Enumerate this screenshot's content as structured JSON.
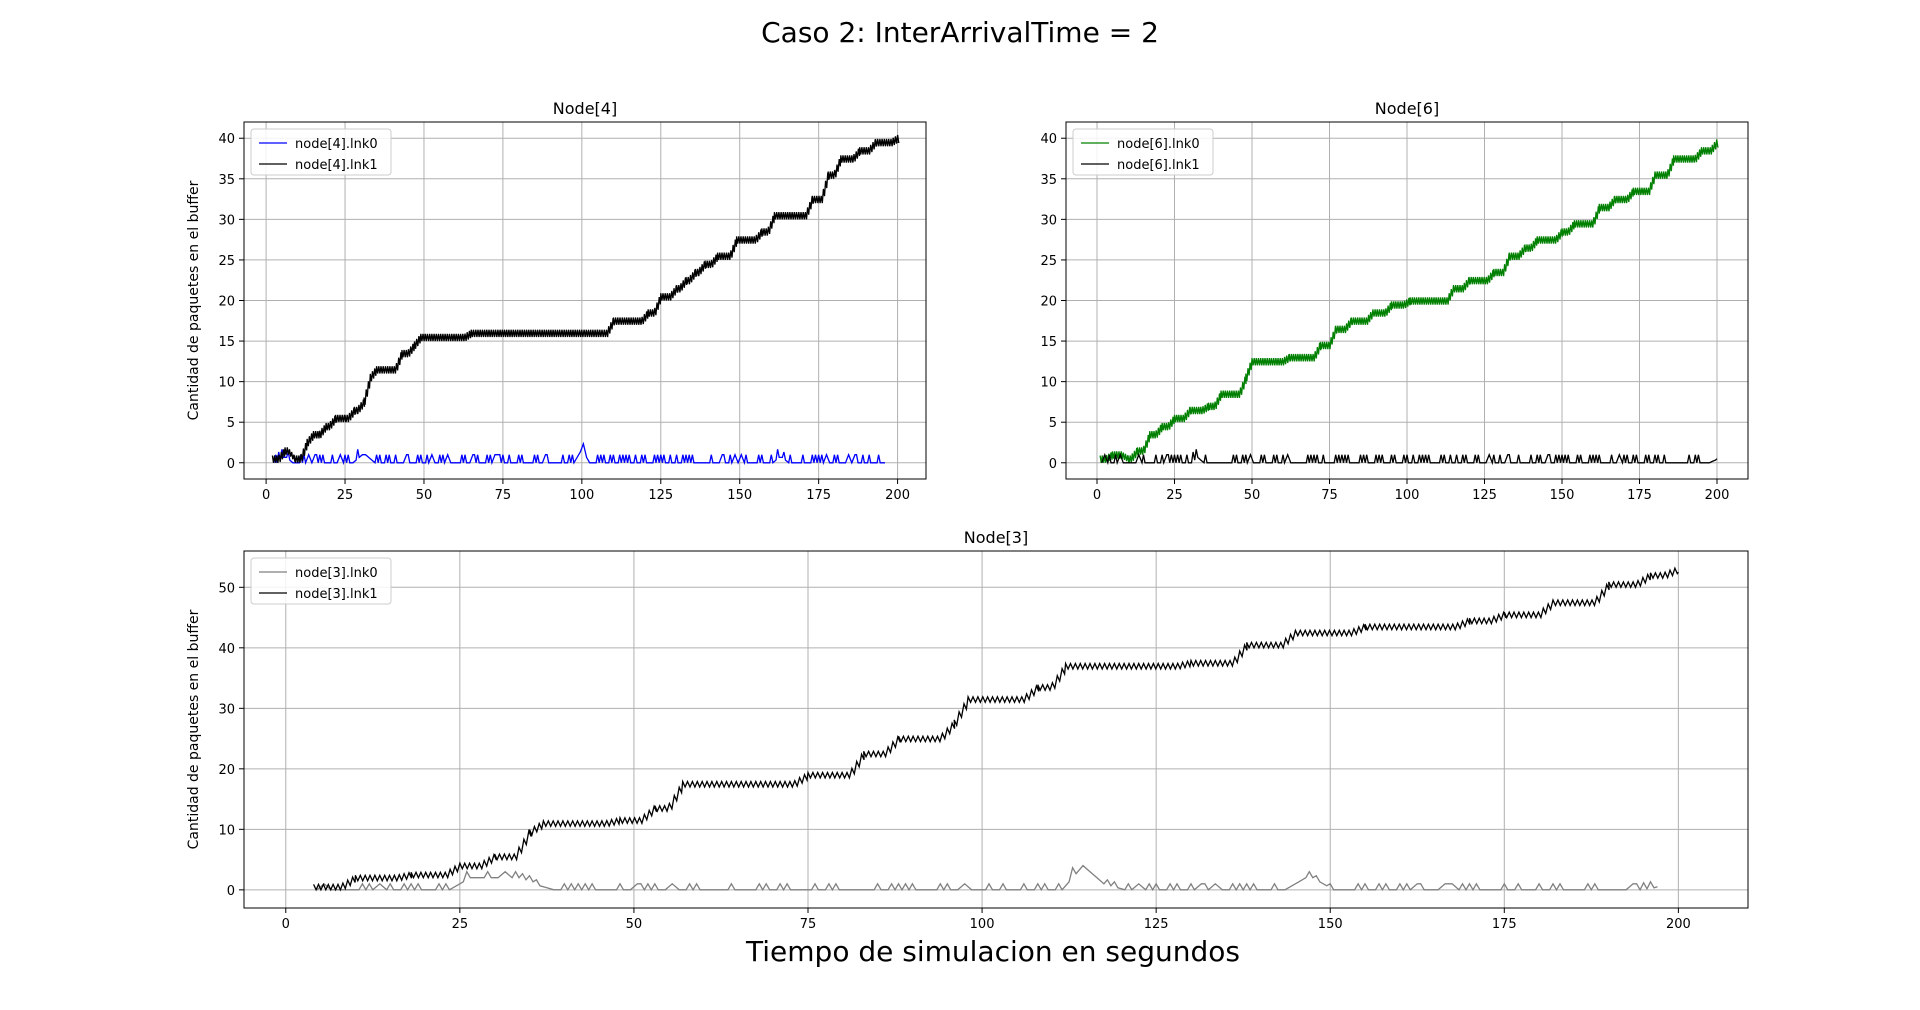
{
  "figure": {
    "suptitle": "Caso 2: InterArrivalTime = 2",
    "xlabel": "Tiempo de simulacion en segundos"
  },
  "colors": {
    "grid": "#b0b0b0",
    "legend_border": "#cccccc"
  },
  "chart_data": [
    {
      "type": "line",
      "title": "Node[4]",
      "xlabel": "",
      "ylabel": "Cantidad de paquetes en el buffer",
      "xlim": [
        -7,
        209
      ],
      "ylim": [
        -2,
        42
      ],
      "xticks": [
        0,
        25,
        50,
        75,
        100,
        125,
        150,
        175,
        200
      ],
      "yticks": [
        0,
        5,
        10,
        15,
        20,
        25,
        30,
        35,
        40
      ],
      "grid": true,
      "legend": "top-left",
      "series": [
        {
          "name": "node[4].lnk0",
          "color": "#0000ff",
          "noise": "sparse",
          "steps": [
            [
              2,
              0
            ],
            [
              6,
              1
            ],
            [
              8,
              0
            ],
            [
              30,
              1
            ],
            [
              34,
              0
            ],
            [
              100,
              2
            ],
            [
              102,
              0
            ],
            [
              163,
              1
            ],
            [
              165,
              0
            ],
            [
              196,
              0
            ]
          ]
        },
        {
          "name": "node[4].lnk1",
          "color": "#000000",
          "noise": "dense",
          "steps": [
            [
              2,
              0
            ],
            [
              6,
              1
            ],
            [
              9,
              0
            ],
            [
              13,
              2
            ],
            [
              15,
              3
            ],
            [
              17,
              3
            ],
            [
              19,
              4
            ],
            [
              22,
              5
            ],
            [
              25,
              5
            ],
            [
              28,
              6
            ],
            [
              31,
              7
            ],
            [
              33,
              10
            ],
            [
              35,
              11
            ],
            [
              43,
              13
            ],
            [
              47,
              14
            ],
            [
              49,
              15
            ],
            [
              65,
              15.5
            ],
            [
              105,
              15.5
            ],
            [
              110,
              17
            ],
            [
              121,
              18
            ],
            [
              125,
              20
            ],
            [
              130,
              21
            ],
            [
              133,
              22
            ],
            [
              136,
              23
            ],
            [
              139,
              24
            ],
            [
              143,
              25
            ],
            [
              149,
              27
            ],
            [
              157,
              28
            ],
            [
              161,
              30
            ],
            [
              173,
              32
            ],
            [
              178,
              35
            ],
            [
              182,
              37
            ],
            [
              188,
              38
            ],
            [
              193,
              39
            ],
            [
              200,
              39.5
            ]
          ]
        }
      ]
    },
    {
      "type": "line",
      "title": "Node[6]",
      "xlabel": "",
      "ylabel": "",
      "xlim": [
        -10,
        210
      ],
      "ylim": [
        -2,
        42
      ],
      "xticks": [
        0,
        25,
        50,
        75,
        100,
        125,
        150,
        175,
        200
      ],
      "yticks": [
        0,
        5,
        10,
        15,
        20,
        25,
        30,
        35,
        40
      ],
      "grid": true,
      "legend": "top-left",
      "series": [
        {
          "name": "node[6].lnk0",
          "color": "#008000",
          "noise": "dense",
          "steps": [
            [
              1,
              0
            ],
            [
              5,
              0.5
            ],
            [
              10,
              0
            ],
            [
              13,
              1
            ],
            [
              17,
              3
            ],
            [
              21,
              4
            ],
            [
              25,
              5
            ],
            [
              30,
              6
            ],
            [
              36,
              6.5
            ],
            [
              40,
              8
            ],
            [
              48,
              10
            ],
            [
              50,
              12
            ],
            [
              62,
              12.5
            ],
            [
              72,
              14
            ],
            [
              77,
              16
            ],
            [
              82,
              17
            ],
            [
              89,
              18
            ],
            [
              95,
              19
            ],
            [
              101,
              19.5
            ],
            [
              115,
              21
            ],
            [
              120,
              22
            ],
            [
              128,
              23
            ],
            [
              133,
              25
            ],
            [
              138,
              26
            ],
            [
              142,
              27
            ],
            [
              150,
              28
            ],
            [
              154,
              29
            ],
            [
              162,
              31
            ],
            [
              167,
              32
            ],
            [
              173,
              33
            ],
            [
              180,
              35
            ],
            [
              186,
              37
            ],
            [
              195,
              38
            ],
            [
              200,
              39
            ]
          ]
        },
        {
          "name": "node[6].lnk1",
          "color": "#000000",
          "noise": "sparse",
          "steps": [
            [
              1,
              0
            ],
            [
              33,
              1
            ],
            [
              34,
              0
            ],
            [
              200,
              0.5
            ]
          ]
        }
      ]
    },
    {
      "type": "line",
      "title": "Node[3]",
      "xlabel": "",
      "ylabel": "Cantidad de paquetes en el buffer",
      "xlim": [
        -6,
        210
      ],
      "ylim": [
        -3,
        56
      ],
      "xticks": [
        0,
        25,
        50,
        75,
        100,
        125,
        150,
        175,
        200
      ],
      "yticks": [
        0,
        10,
        20,
        30,
        40,
        50
      ],
      "grid": true,
      "legend": "top-left",
      "series": [
        {
          "name": "node[3].lnk0",
          "color": "#808080",
          "noise": "sparse",
          "steps": [
            [
              4,
              0
            ],
            [
              26,
              2
            ],
            [
              36,
              1
            ],
            [
              38,
              0
            ],
            [
              114,
              4
            ],
            [
              117,
              1
            ],
            [
              120,
              0
            ],
            [
              146,
              2
            ],
            [
              150,
              0
            ],
            [
              197,
              0.5
            ]
          ]
        },
        {
          "name": "node[3].lnk1",
          "color": "#000000",
          "noise": "dense",
          "steps": [
            [
              4,
              0
            ],
            [
              10,
              1.5
            ],
            [
              18,
              2
            ],
            [
              25,
              3.5
            ],
            [
              30,
              5
            ],
            [
              35,
              9
            ],
            [
              37,
              10.5
            ],
            [
              48,
              11
            ],
            [
              53,
              13
            ],
            [
              57,
              17
            ],
            [
              75,
              18.5
            ],
            [
              83,
              22
            ],
            [
              88,
              24.5
            ],
            [
              96,
              27
            ],
            [
              98,
              31
            ],
            [
              108,
              33
            ],
            [
              112,
              36.5
            ],
            [
              130,
              37
            ],
            [
              138,
              40
            ],
            [
              145,
              42
            ],
            [
              155,
              43
            ],
            [
              170,
              44
            ],
            [
              175,
              45
            ],
            [
              182,
              47
            ],
            [
              190,
              50
            ],
            [
              196,
              51.5
            ],
            [
              200,
              52.5
            ]
          ]
        }
      ]
    }
  ]
}
